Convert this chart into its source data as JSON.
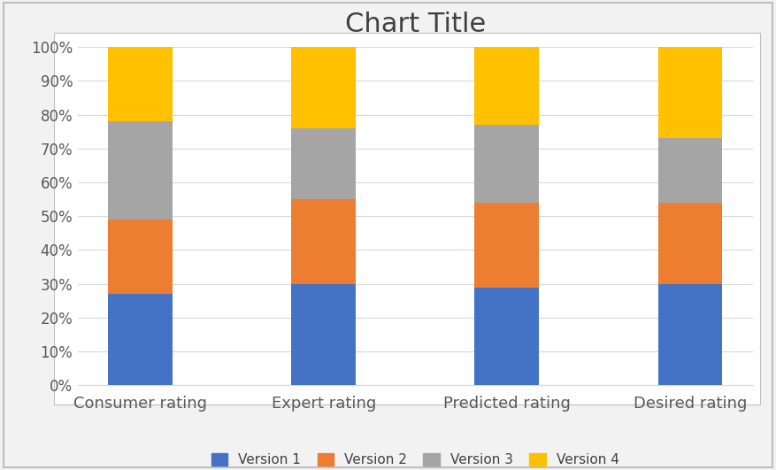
{
  "categories": [
    "Consumer rating",
    "Expert rating",
    "Predicted rating",
    "Desired rating"
  ],
  "series": {
    "Version 1": [
      0.27,
      0.3,
      0.29,
      0.3
    ],
    "Version 2": [
      0.22,
      0.25,
      0.25,
      0.24
    ],
    "Version 3": [
      0.29,
      0.21,
      0.23,
      0.19
    ],
    "Version 4": [
      0.22,
      0.24,
      0.23,
      0.27
    ]
  },
  "colors": {
    "Version 1": "#4472C4",
    "Version 2": "#ED7D31",
    "Version 3": "#A5A5A5",
    "Version 4": "#FFC000"
  },
  "title": "Chart Title",
  "title_fontsize": 22,
  "ylim": [
    0,
    1.0
  ],
  "yticks": [
    0.0,
    0.1,
    0.2,
    0.3,
    0.4,
    0.5,
    0.6,
    0.7,
    0.8,
    0.9,
    1.0
  ],
  "ytick_labels": [
    "0%",
    "10%",
    "20%",
    "30%",
    "40%",
    "50%",
    "60%",
    "70%",
    "80%",
    "90%",
    "100%"
  ],
  "background_color": "#FFFFFF",
  "outer_bg": "#F2F2F2",
  "bar_width": 0.35,
  "legend_fontsize": 11,
  "tick_fontsize": 12,
  "category_fontsize": 13,
  "grid_color": "#D9D9D9",
  "border_color": "#BFBFBF"
}
